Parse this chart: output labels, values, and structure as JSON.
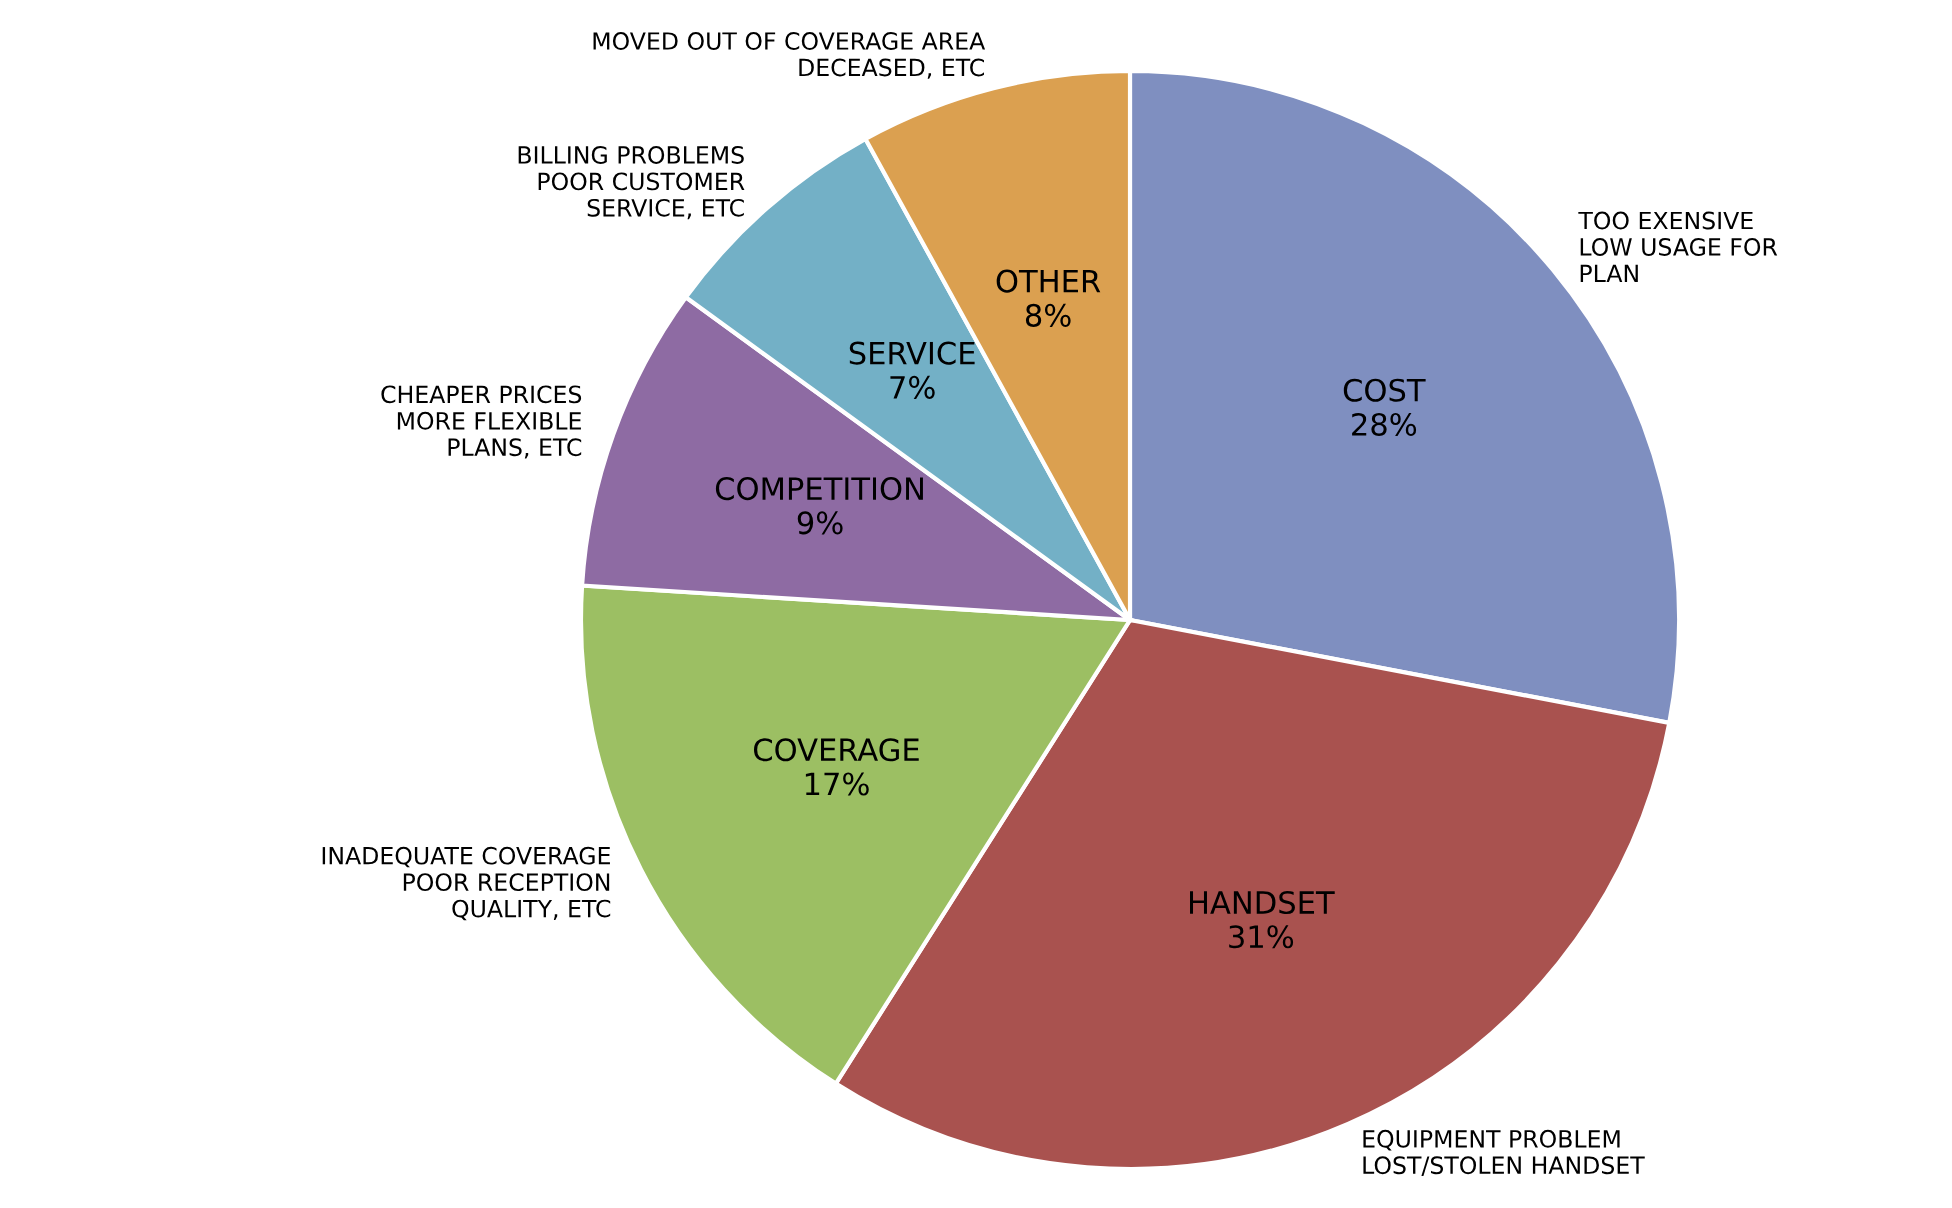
{
  "chart_data": {
    "type": "pie",
    "categories": [
      "COST",
      "HANDSET",
      "COVERAGE",
      "COMPETITION",
      "SERVICE",
      "OTHER"
    ],
    "values": [
      28,
      31,
      17,
      9,
      7,
      8
    ],
    "value_labels": [
      "28%",
      "31%",
      "17%",
      "9%",
      "7%",
      "8%"
    ],
    "colors": [
      "#7f8fc0",
      "#a9524f",
      "#9cbf63",
      "#8e6ba3",
      "#73b0c6",
      "#dba050"
    ],
    "annotations": [
      "TOO EXENSIVE\nLOW USAGE FOR\nPLAN",
      "EQUIPMENT PROBLEM\nLOST/STOLEN HANDSET",
      "INADEQUATE COVERAGE\nPOOR RECEPTION\nQUALITY, ETC",
      "CHEAPER PRICES\nMORE FLEXIBLE\nPLANS, ETC",
      "BILLING PROBLEMS\nPOOR CUSTOMER\nSERVICE, ETC",
      "MOVED OUT OF COVERAGE AREA\nDECEASED, ETC"
    ],
    "legend": false
  }
}
